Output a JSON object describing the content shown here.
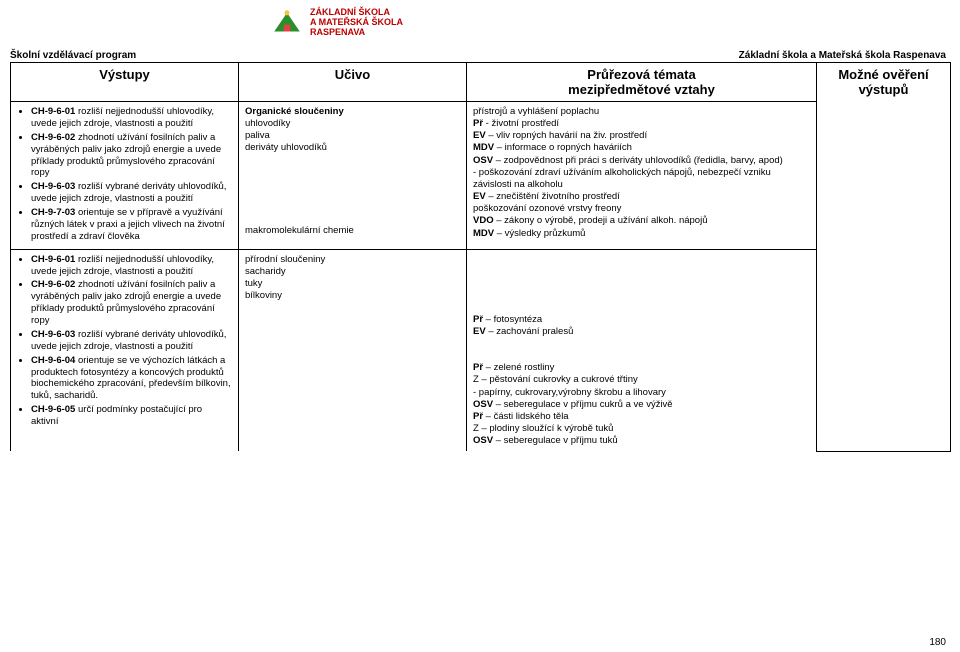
{
  "document": {
    "program_label": "Školní vzdělávací program",
    "school_label": "Základní škola a Mateřská škola Raspenava",
    "page_number": "180",
    "logo": {
      "title_line1": "ZÁKLADNÍ ŠKOLA",
      "title_line2": "A MATEŘSKÁ ŠKOLA",
      "title_line3": "RASPENAVA"
    }
  },
  "table": {
    "headers": {
      "col1": "Výstupy",
      "col2": "Učivo",
      "col3a": "Průřezová témata",
      "col3b": "mezipředmětové vztahy",
      "col4a": "Možné ověření",
      "col4b": "výstupů"
    },
    "row1": {
      "col1_items": [
        "CH-9-6-01 rozliší nejjednodušší uhlovodíky, uvede jejich zdroje, vlastnosti a použití",
        "CH-9-6-02 zhodnotí užívání fosilních paliv a vyráběných paliv jako zdrojů energie a uvede příklady produktů průmyslového zpracování ropy",
        "CH-9-6-03 rozliší vybrané deriváty uhlovodíků, uvede jejich zdroje, vlastnosti a použití",
        "CH-9-7-03 orientuje se v přípravě a využívání různých látek v praxi a jejich vlivech na životní prostředí a zdraví člověka"
      ],
      "col2_block1_title": "Organické sloučeniny",
      "col2_block1_lines": [
        "uhlovodíky",
        "paliva",
        "deriváty uhlovodíků"
      ],
      "col2_block2": "makromolekulární chemie",
      "col3_lines": [
        "přístrojů a vyhlášení poplachu",
        "Př  - životní prostředí",
        "EV – vliv ropných havárií na živ. prostředí",
        "MDV – informace o ropných haváriích",
        "OSV – zodpovědnost při práci s deriváty uhlovodíků (ředidla, barvy, apod)",
        "       - poškozování zdraví užíváním alkoholických nápojů, nebezpečí vzniku závislosti na alkoholu",
        "EV – znečištění životního prostředí",
        "       poškozování ozonové vrstvy freony",
        "VDO – zákony o výrobě, prodeji a užívání alkoh. nápojů",
        "MDV – výsledky průzkumů"
      ]
    },
    "row2": {
      "col1_items": [
        "CH-9-6-01 rozliší nejjednodušší uhlovodíky, uvede jejich zdroje, vlastnosti a použití",
        "CH-9-6-02 zhodnotí užívání fosilních paliv a vyráběných paliv jako zdrojů energie a uvede příklady produktů průmyslového zpracování ropy",
        "CH-9-6-03 rozliší vybrané deriváty uhlovodíků, uvede jejich zdroje, vlastnosti a použití",
        "CH-9-6-04 orientuje se ve výchozích látkách a produktech fotosyntézy a koncových produktů biochemického zpracování, především bílkovin, tuků, sacharidů.",
        "CH-9-6-05 určí podmínky postačující pro aktivní"
      ],
      "col2_lines": [
        "přírodní sloučeniny",
        "sacharidy",
        "tuky",
        "bílkoviny"
      ],
      "col3_lines": [
        "Př – fotosyntéza",
        "EV – zachování pralesů",
        "",
        "",
        "Př – zelené rostliny",
        "Z – pěstování cukrovky a cukrové třtiny",
        "     - papírny, cukrovary,výrobny škrobu a lihovary",
        "OSV – seberegulace v příjmu cukrů a ve výživě",
        "Př – části lidského těla",
        "Z – plodiny sloužící k výrobě tuků",
        "OSV – seberegulace v příjmu tuků"
      ]
    }
  }
}
